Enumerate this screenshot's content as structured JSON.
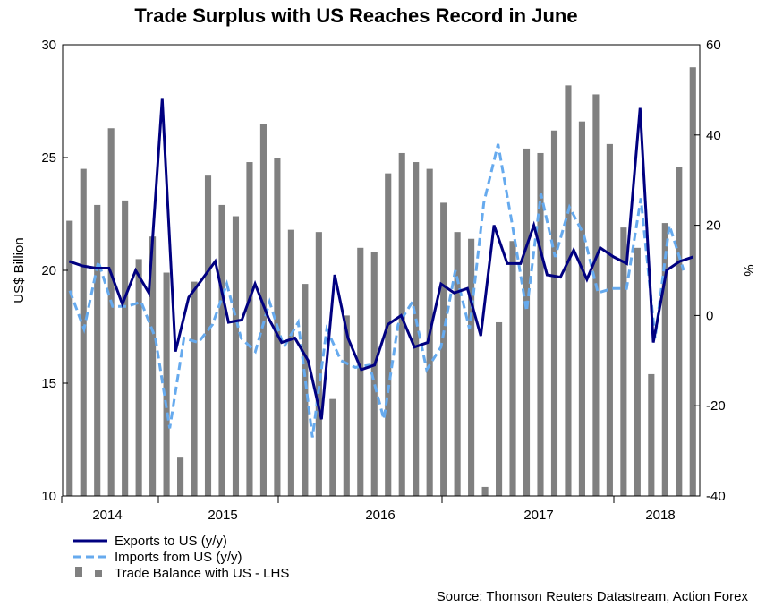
{
  "chart_data": {
    "type": "bar+line",
    "title": "Trade Surplus with US Reaches Record in June",
    "ylabel_left": "US$ Billion",
    "ylabel_right": "%",
    "ylim_left": [
      10,
      30
    ],
    "ylim_right": [
      -40,
      60
    ],
    "yticks_left": [
      "10",
      "15",
      "20",
      "25",
      "30"
    ],
    "yticks_right": [
      "-40",
      "-20",
      "0",
      "20",
      "40",
      "60"
    ],
    "year_labels": [
      "2014",
      "2015",
      "2016",
      "2017",
      "2018"
    ],
    "source": "Source: Thomson Reuters Datastream, Action Forex",
    "legend": [
      {
        "label": "Exports to US (y/y)",
        "color": "#000080",
        "style": "solid"
      },
      {
        "label": "Imports from US (y/y)",
        "color": "#66aaee",
        "style": "dashed"
      },
      {
        "label": "Trade Balance with US - LHS",
        "color": "#808080",
        "style": "bar"
      }
    ],
    "series": [
      {
        "name": "Trade Balance with US - LHS",
        "axis": "left",
        "values": [
          22.2,
          24.5,
          22.9,
          26.3,
          23.1,
          20.5,
          21.5,
          19.9,
          11.7,
          19.5,
          24.2,
          22.9,
          22.4,
          24.8,
          26.5,
          25.0,
          21.8,
          19.4,
          21.7,
          14.3,
          18.0,
          21.0,
          20.8,
          24.3,
          25.2,
          24.8,
          24.5,
          23.0,
          21.7,
          21.4,
          10.4,
          17.7,
          21.3,
          25.4,
          25.2,
          26.2,
          28.2,
          26.6,
          27.8,
          25.6,
          21.9,
          21.0,
          15.4,
          22.1,
          24.6,
          29.0
        ]
      },
      {
        "name": "Exports to US (y/y)",
        "axis": "right",
        "values": [
          12,
          11,
          10.5,
          10.5,
          2.5,
          10,
          5,
          48,
          -8,
          4,
          8,
          12,
          -1.5,
          -1,
          7,
          -0.5,
          -6,
          -5,
          -10,
          -23,
          9,
          -5,
          -12,
          -11,
          -2,
          0,
          -7,
          -6,
          7,
          5,
          6,
          -4.5,
          20,
          11.5,
          11.5,
          20,
          9,
          8.5,
          14.5,
          8,
          15,
          13,
          11.5,
          46,
          -6,
          10,
          12,
          13
        ]
      },
      {
        "name": "Imports from US (y/y)",
        "axis": "right",
        "values": [
          5.5,
          -3,
          12,
          2,
          2,
          3,
          -5,
          -25,
          -5,
          -6,
          -2,
          7,
          -5,
          -8,
          3,
          -7,
          -1.5,
          -27,
          -3,
          -10,
          -11.5,
          -11,
          -23,
          -2,
          3,
          -12,
          -7,
          10,
          -3,
          25,
          38,
          20,
          1,
          27,
          13,
          24,
          18,
          5,
          6,
          6,
          26,
          -5,
          20,
          10
        ]
      }
    ]
  }
}
